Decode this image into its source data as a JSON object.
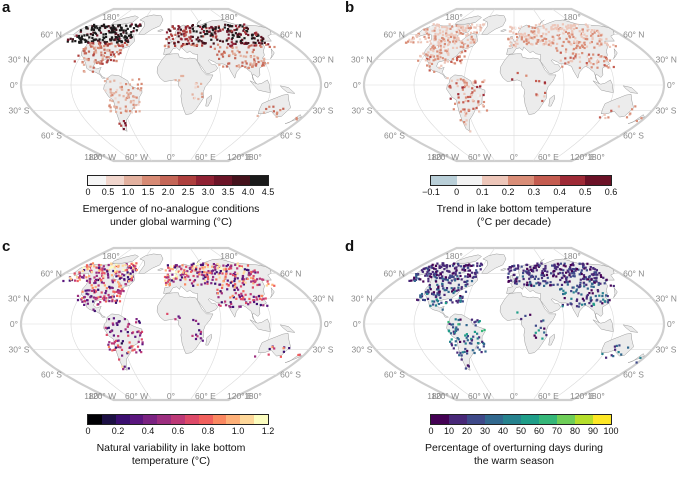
{
  "chart_data": [
    {
      "type": "heatmap",
      "panel": "a",
      "title_lines": [
        "Emergence of no-analogue conditions",
        "under global warming (°C)"
      ],
      "colorbar_ticks": [
        "0",
        "0.5",
        "1.0",
        "1.5",
        "2.0",
        "2.5",
        "3.0",
        "3.5",
        "4.0",
        "4.5"
      ],
      "colorbar_colors": [
        "#f5f5f5",
        "#f1d6cd",
        "#e3b19f",
        "#d78a74",
        "#c46657",
        "#ad3f3d",
        "#8f2133",
        "#6b1427",
        "#45121c",
        "#1a1a1a"
      ],
      "lat_labels": [
        "60° N",
        "30° N",
        "0°",
        "30° S",
        "60° S"
      ],
      "lon_labels_top": [
        "180°",
        "180°"
      ],
      "lon_labels_bottom": [
        "180°",
        "120° W",
        "60° W",
        "0°",
        "60° E",
        "120° E",
        "180°"
      ]
    },
    {
      "type": "heatmap",
      "panel": "b",
      "title_lines": [
        "Trend in lake bottom temperature",
        "(°C per decade)"
      ],
      "colorbar_ticks": [
        "−0.1",
        "0",
        "0.1",
        "0.2",
        "0.3",
        "0.4",
        "0.5",
        "0.6"
      ],
      "colorbar_colors": [
        "#b9cfd8",
        "#f3f3f3",
        "#edc6b9",
        "#d98d77",
        "#c45c50",
        "#9e2a36",
        "#6b1126"
      ],
      "lat_labels": [
        "60° N",
        "30° N",
        "0°",
        "30° S",
        "60° S"
      ],
      "lon_labels_top": [
        "180°",
        "180°"
      ],
      "lon_labels_bottom": [
        "180°",
        "120° W",
        "60° W",
        "0°",
        "60° E",
        "120° E",
        "180°"
      ]
    },
    {
      "type": "heatmap",
      "panel": "c",
      "title_lines": [
        "Natural variability in lake bottom",
        "temperature (°C)"
      ],
      "colorbar_ticks": [
        "0",
        "0.2",
        "0.4",
        "0.6",
        "0.8",
        "1.0",
        "1.2"
      ],
      "colorbar_colors": [
        "#000004",
        "#1c1044",
        "#3b0f70",
        "#5a167e",
        "#7b2382",
        "#9c2e7f",
        "#bd3977",
        "#dd4a69",
        "#f1605d",
        "#fb8861",
        "#feb078",
        "#fed799",
        "#fcfdbf"
      ],
      "lat_labels": [
        "60° N",
        "30° N",
        "0°",
        "30° S",
        "60° S"
      ],
      "lon_labels_top": [
        "180°",
        "180°"
      ],
      "lon_labels_bottom": [
        "180°",
        "120° W",
        "60° W",
        "0°",
        "60° E",
        "120° E",
        "180°"
      ]
    },
    {
      "type": "heatmap",
      "panel": "d",
      "title_lines": [
        "Percentage of overturning days during",
        "the warm season"
      ],
      "colorbar_ticks": [
        "0",
        "10",
        "20",
        "30",
        "40",
        "50",
        "60",
        "70",
        "80",
        "90",
        "100"
      ],
      "colorbar_colors": [
        "#440154",
        "#482878",
        "#3e4989",
        "#31688e",
        "#26828e",
        "#1f9e89",
        "#35b779",
        "#6ece58",
        "#b5de2b",
        "#fde725"
      ],
      "lat_labels": [
        "60° N",
        "30° N",
        "0°",
        "30° S",
        "60° S"
      ],
      "lon_labels_top": [
        "180°",
        "180°"
      ],
      "lon_labels_bottom": [
        "180°",
        "120° W",
        "60° W",
        "0°",
        "60° E",
        "120° E",
        "180°"
      ]
    }
  ]
}
